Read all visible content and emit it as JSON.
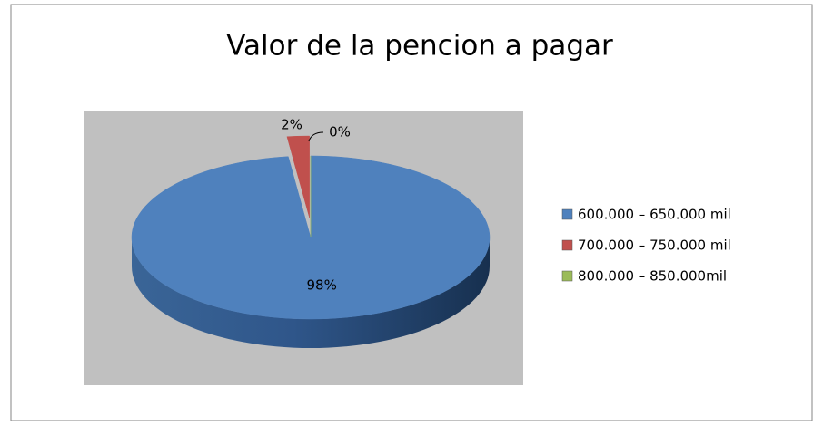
{
  "chart_data": {
    "type": "pie",
    "title": "Valor de la pencion a pagar",
    "categories": [
      "600.000 – 650.000 mil",
      "700.000 – 750.000 mil",
      "800.000 – 850.000mil"
    ],
    "values": [
      98,
      2,
      0
    ],
    "value_labels": [
      "98%",
      "2%",
      "0%"
    ],
    "colors": [
      "#4f81bd",
      "#c0504d",
      "#9bbb59"
    ],
    "legend": "right"
  }
}
